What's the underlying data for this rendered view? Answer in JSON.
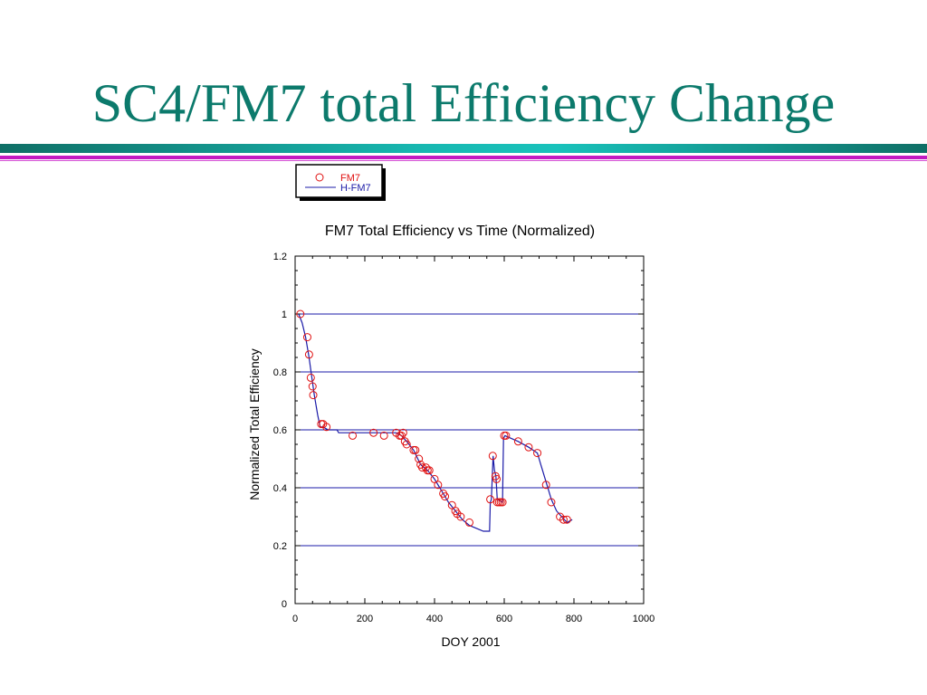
{
  "slide": {
    "title": "SC4/FM7 total Efficiency Change"
  },
  "colors": {
    "title": "#0c7a6c",
    "teal_bar": "#17b7b0",
    "magenta_bar": "#c21bc2",
    "gridline": "#1b1ba8",
    "line_series": "#1b1ba8",
    "marker_series": "#e01010"
  },
  "chart_data": {
    "type": "scatter",
    "title": "FM7 Total Efficiency vs Time (Normalized)",
    "xlabel": "DOY 2001",
    "ylabel": "Normalized Total Efficiency",
    "xlim": [
      0,
      1000
    ],
    "ylim": [
      0,
      1.2
    ],
    "x_ticks": [
      0,
      200,
      400,
      600,
      800,
      1000
    ],
    "y_ticks": [
      0,
      0.2,
      0.4,
      0.6,
      0.8,
      1,
      1.2
    ],
    "x_tick_labels": [
      "0",
      "200",
      "400",
      "600",
      "800",
      "1000"
    ],
    "y_tick_labels": [
      "0",
      "0.2",
      "0.4",
      "0.6",
      "0.8",
      "1",
      "1.2"
    ],
    "horizontal_gridlines": [
      0.2,
      0.4,
      0.6,
      0.8,
      1.0
    ],
    "legend_position": "above-left",
    "series": [
      {
        "name": "FM7",
        "style": "open-circle",
        "color": "#e01010",
        "points": [
          [
            15,
            1.0
          ],
          [
            35,
            0.92
          ],
          [
            40,
            0.86
          ],
          [
            45,
            0.78
          ],
          [
            50,
            0.75
          ],
          [
            52,
            0.72
          ],
          [
            75,
            0.62
          ],
          [
            80,
            0.62
          ],
          [
            90,
            0.61
          ],
          [
            165,
            0.58
          ],
          [
            225,
            0.59
          ],
          [
            255,
            0.58
          ],
          [
            290,
            0.59
          ],
          [
            300,
            0.58
          ],
          [
            305,
            0.58
          ],
          [
            310,
            0.59
          ],
          [
            315,
            0.56
          ],
          [
            320,
            0.55
          ],
          [
            340,
            0.53
          ],
          [
            345,
            0.53
          ],
          [
            355,
            0.5
          ],
          [
            360,
            0.48
          ],
          [
            365,
            0.47
          ],
          [
            375,
            0.47
          ],
          [
            380,
            0.46
          ],
          [
            385,
            0.46
          ],
          [
            400,
            0.43
          ],
          [
            410,
            0.41
          ],
          [
            425,
            0.38
          ],
          [
            430,
            0.37
          ],
          [
            450,
            0.34
          ],
          [
            460,
            0.32
          ],
          [
            465,
            0.31
          ],
          [
            475,
            0.3
          ],
          [
            500,
            0.28
          ],
          [
            560,
            0.36
          ],
          [
            567,
            0.51
          ],
          [
            575,
            0.44
          ],
          [
            578,
            0.43
          ],
          [
            580,
            0.35
          ],
          [
            585,
            0.35
          ],
          [
            590,
            0.35
          ],
          [
            595,
            0.35
          ],
          [
            600,
            0.58
          ],
          [
            605,
            0.58
          ],
          [
            640,
            0.56
          ],
          [
            670,
            0.54
          ],
          [
            695,
            0.52
          ],
          [
            720,
            0.41
          ],
          [
            735,
            0.35
          ],
          [
            760,
            0.3
          ],
          [
            770,
            0.29
          ],
          [
            780,
            0.29
          ]
        ]
      },
      {
        "name": "H-FM7",
        "style": "line",
        "color": "#1b1ba8",
        "points": [
          [
            10,
            1.0
          ],
          [
            20,
            0.97
          ],
          [
            30,
            0.92
          ],
          [
            40,
            0.85
          ],
          [
            48,
            0.78
          ],
          [
            55,
            0.72
          ],
          [
            65,
            0.65
          ],
          [
            72,
            0.61
          ],
          [
            80,
            0.61
          ],
          [
            95,
            0.6
          ],
          [
            120,
            0.6
          ],
          [
            125,
            0.59
          ],
          [
            290,
            0.59
          ],
          [
            305,
            0.58
          ],
          [
            320,
            0.56
          ],
          [
            340,
            0.53
          ],
          [
            360,
            0.48
          ],
          [
            380,
            0.46
          ],
          [
            400,
            0.43
          ],
          [
            420,
            0.39
          ],
          [
            440,
            0.35
          ],
          [
            460,
            0.32
          ],
          [
            480,
            0.29
          ],
          [
            500,
            0.27
          ],
          [
            520,
            0.26
          ],
          [
            540,
            0.25
          ],
          [
            558,
            0.25
          ],
          [
            560,
            0.35
          ],
          [
            563,
            0.36
          ],
          [
            568,
            0.51
          ],
          [
            572,
            0.46
          ],
          [
            576,
            0.44
          ],
          [
            580,
            0.36
          ],
          [
            595,
            0.35
          ],
          [
            598,
            0.57
          ],
          [
            602,
            0.58
          ],
          [
            640,
            0.56
          ],
          [
            670,
            0.54
          ],
          [
            695,
            0.52
          ],
          [
            705,
            0.48
          ],
          [
            720,
            0.42
          ],
          [
            735,
            0.36
          ],
          [
            750,
            0.32
          ],
          [
            765,
            0.3
          ],
          [
            780,
            0.28
          ],
          [
            795,
            0.29
          ]
        ]
      }
    ]
  }
}
